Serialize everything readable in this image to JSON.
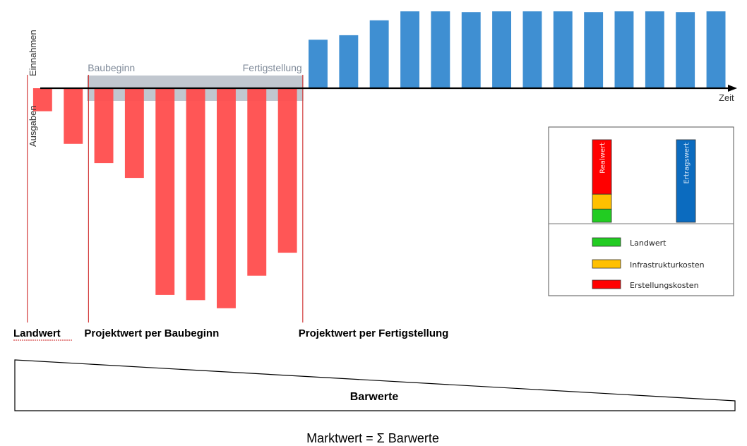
{
  "chart_data": {
    "type": "bar",
    "axis": {
      "y_positive_label": "Einnahmen",
      "y_negative_label": "Ausgaben",
      "x_label": "Zeit"
    },
    "phase": {
      "start_label": "Baubeginn",
      "end_label": "Fertigstellung",
      "start_period": 3,
      "end_period": 9
    },
    "series": [
      {
        "name": "Ausgaben",
        "color": "#ff4d4d",
        "periods": [
          1,
          2,
          3,
          4,
          5,
          6,
          7,
          8,
          9
        ],
        "values": [
          -3.1,
          -7.5,
          -10.1,
          -12.1,
          -27.9,
          -28.6,
          -29.7,
          -25.3,
          -22.2
        ]
      },
      {
        "name": "Einnahmen",
        "color": "#3f8fd2",
        "periods": [
          10,
          11,
          12,
          13,
          14,
          15,
          16,
          17,
          18,
          19,
          20,
          21,
          22,
          23
        ],
        "values": [
          6.5,
          7.1,
          9.1,
          10.3,
          10.3,
          10.2,
          10.3,
          10.3,
          10.3,
          10.2,
          10.3,
          10.3,
          10.2,
          10.3
        ]
      }
    ],
    "ylim": [
      -30,
      10.5
    ],
    "xlim": [
      0.3,
      23.6
    ],
    "value_markers": [
      {
        "label": "Landwert",
        "period": 0.5
      },
      {
        "label": "Projektwert per Baubeginn",
        "period": 2.5
      },
      {
        "label": "Projektwert per Fertigstellung",
        "period": 9.5
      }
    ],
    "legend": {
      "bars": [
        {
          "label": "Realwert",
          "color": "#ff0000",
          "stack": [
            {
              "color": "#ff0000",
              "share": 0.66
            },
            {
              "color": "#ffc000",
              "share": 0.18
            },
            {
              "color": "#22cc22",
              "share": 0.16
            }
          ]
        },
        {
          "label": "Ertragswert",
          "color": "#0b6bbf"
        }
      ],
      "items": [
        {
          "label": "Landwert",
          "color": "#22cc22"
        },
        {
          "label": "Infrastrukturkosten",
          "color": "#ffc000"
        },
        {
          "label": "Erstellungskosten",
          "color": "#ff0000"
        }
      ]
    },
    "barwerte_label": "Barwerte",
    "footer": "Marktwert = Σ Barwerte"
  }
}
